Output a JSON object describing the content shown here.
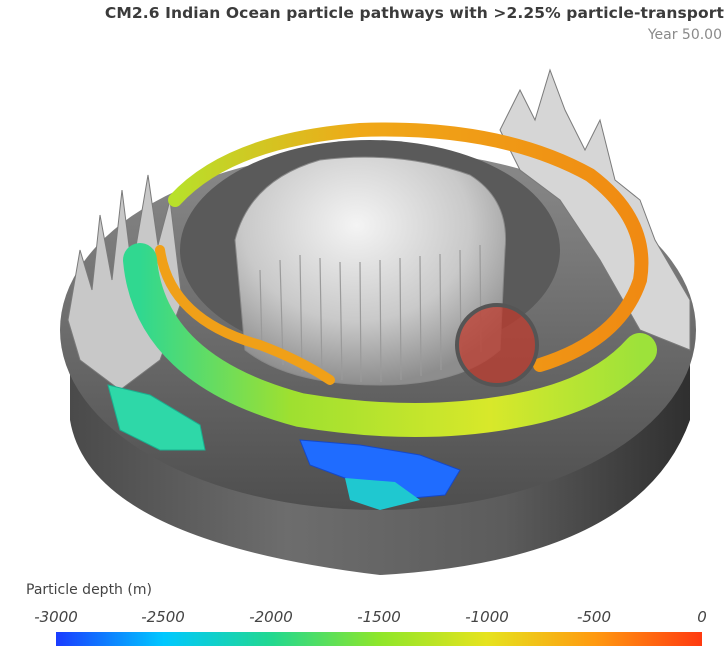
{
  "header": {
    "title": "CM2.6 Indian Ocean particle pathways with >2.25% particle-transport",
    "year": "Year 50.00"
  },
  "legend": {
    "title": "Particle depth (m)",
    "ticks": [
      "-3000",
      "-2500",
      "-2000",
      "-1500",
      "-1000",
      "-500",
      "0"
    ],
    "colors": [
      "#1a3cff",
      "#00c8ff",
      "#22d890",
      "#8ee62a",
      "#e6e31e",
      "#ff9a10",
      "#ff3a10"
    ]
  },
  "highlight": {
    "color": "#c0392b"
  }
}
